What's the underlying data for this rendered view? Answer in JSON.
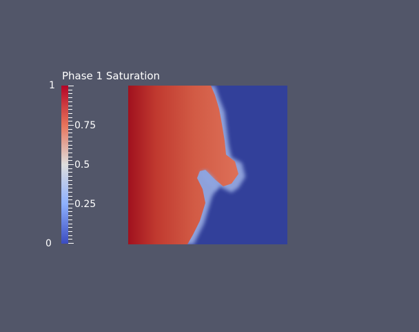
{
  "legend": {
    "title": "Phase 1 Saturation",
    "max_label": "1",
    "min_label": "0",
    "tick_labels": [
      "0.75",
      "0.5",
      "0.25"
    ],
    "range": [
      0,
      1
    ],
    "colormap": [
      "#b40426",
      "#e7745b",
      "#dddddd",
      "#8db0fe",
      "#3b4cc0"
    ]
  },
  "plot": {
    "background_color": "#525669",
    "high_color": "#b3262f",
    "mid_color": "#d8684f",
    "low_color": "#32409a"
  }
}
